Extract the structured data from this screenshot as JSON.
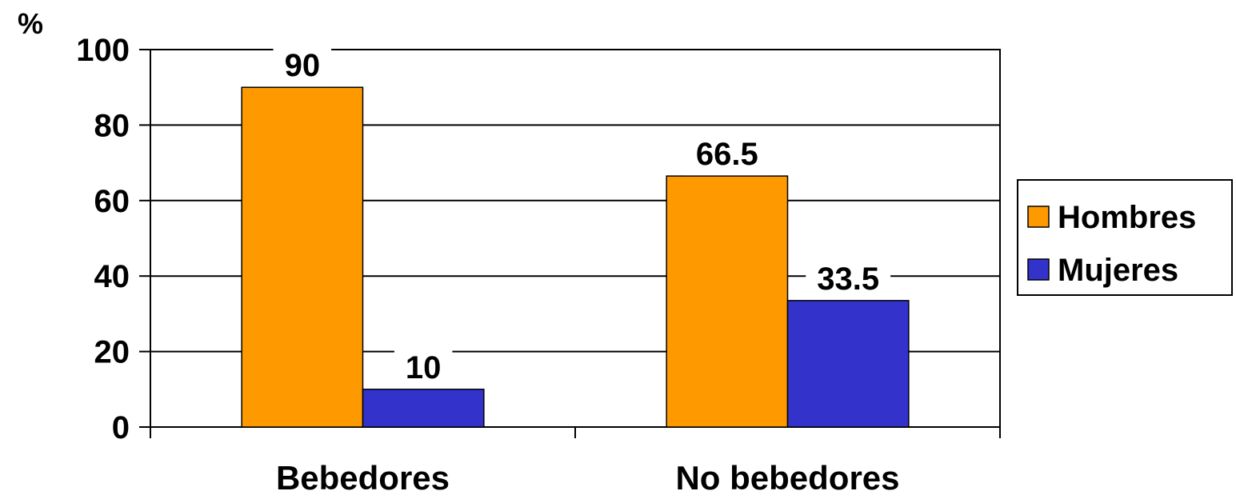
{
  "chart_data": {
    "type": "bar",
    "ylabel": "%",
    "xlabel": "",
    "ylim": [
      0,
      100
    ],
    "yticks": [
      0,
      20,
      40,
      60,
      80,
      100
    ],
    "categories": [
      "Bebedores",
      "No bebedores"
    ],
    "series": [
      {
        "name": "Hombres",
        "values": [
          90,
          66.5
        ],
        "data_labels": [
          "90",
          "66.5"
        ],
        "color": "#FF9900"
      },
      {
        "name": "Mujeres",
        "values": [
          10,
          33.5
        ],
        "data_labels": [
          "10",
          "33.5"
        ],
        "color": "#3333CC"
      }
    ],
    "grid": true,
    "legend_position": "right"
  }
}
